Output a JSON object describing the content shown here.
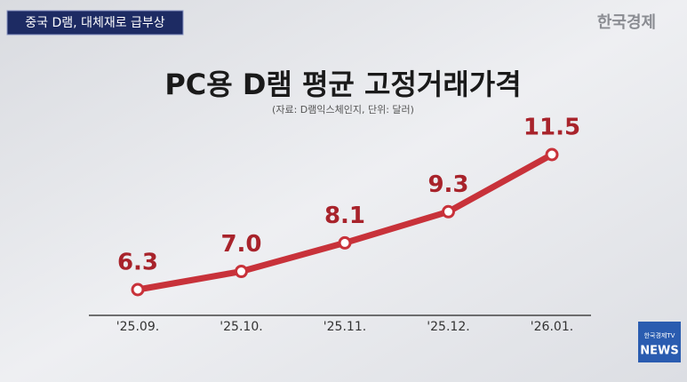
{
  "badge": "중국 D램, 대체재로 급부상",
  "logo": "한국경제",
  "watermark": {
    "top": "한국경제TV",
    "bottom": "NEWS"
  },
  "chart_data": {
    "type": "line",
    "title": "PC용 D램 평균 고정거래가격",
    "subtitle": "(자료: D램익스체인지, 단위: 달러)",
    "categories": [
      "'25.09.",
      "'25.10.",
      "'25.11.",
      "'25.12.",
      "'26.01."
    ],
    "values": [
      6.3,
      7.0,
      8.1,
      9.3,
      11.5
    ],
    "value_labels": [
      "6.3",
      "7.0",
      "8.1",
      "9.3",
      "11.5"
    ],
    "color": "#c8323a"
  }
}
